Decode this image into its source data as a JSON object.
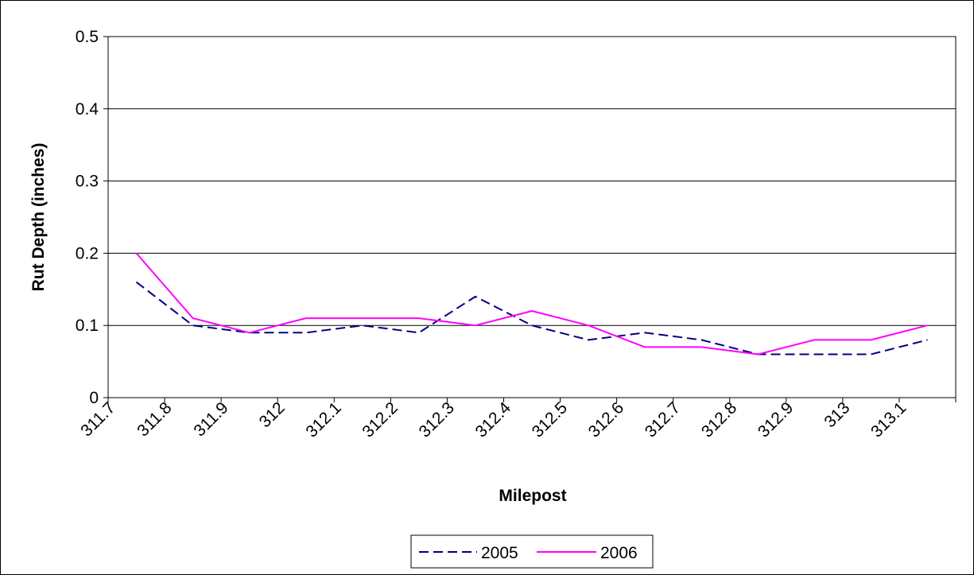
{
  "chart_data": {
    "type": "line",
    "title": "",
    "xlabel": "Milepost",
    "ylabel": "Rut Depth (inches)",
    "ylim": [
      0,
      0.5
    ],
    "yticks": [
      "0",
      "0.1",
      "0.2",
      "0.3",
      "0.4",
      "0.5"
    ],
    "ytick_values": [
      0,
      0.1,
      0.2,
      0.3,
      0.4,
      0.5
    ],
    "x_tick_labels": [
      "311.7",
      "311.8",
      "311.9",
      "312",
      "312.1",
      "312.2",
      "312.3",
      "312.4",
      "312.5",
      "312.6",
      "312.7",
      "312.8",
      "312.9",
      "313",
      "313.1"
    ],
    "grid": true,
    "legend_position": "bottom",
    "series": [
      {
        "name": "2005",
        "color": "#000080",
        "style": "dashed",
        "values": [
          0.16,
          0.1,
          0.09,
          0.09,
          0.1,
          0.09,
          0.14,
          0.1,
          0.08,
          0.09,
          0.08,
          0.06,
          0.06,
          0.06,
          0.08
        ]
      },
      {
        "name": "2006",
        "color": "#FF00FF",
        "style": "solid",
        "values": [
          0.2,
          0.11,
          0.09,
          0.11,
          0.11,
          0.11,
          0.1,
          0.12,
          0.1,
          0.07,
          0.07,
          0.06,
          0.08,
          0.08,
          0.1
        ]
      }
    ]
  }
}
